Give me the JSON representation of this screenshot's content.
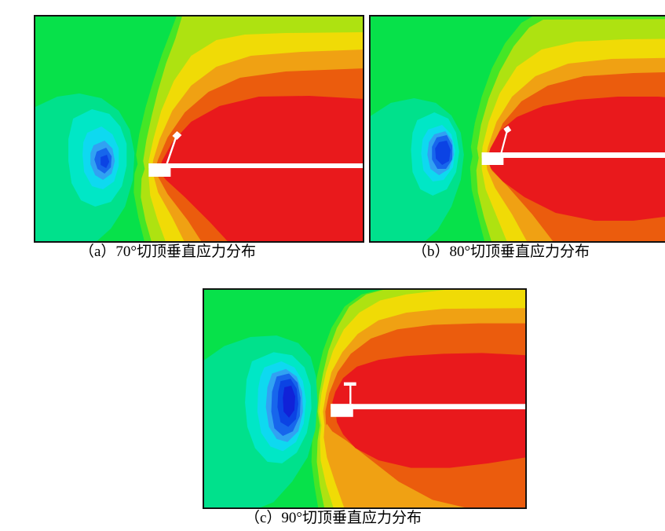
{
  "page": {
    "background": "#FFFFFF"
  },
  "figure": {
    "panels": [
      {
        "id": "a",
        "caption": "（a）70°切顶垂直应力分布",
        "roof_cut_angle": "70°"
      },
      {
        "id": "b",
        "caption": "（b）80°切顶垂直应力分布",
        "roof_cut_angle": "80°"
      },
      {
        "id": "c",
        "caption": "（c）90°切顶垂直应力分布",
        "roof_cut_angle": "90°"
      }
    ],
    "palette": {
      "background_green": "#07E14A",
      "light_green": "#45E626",
      "spring_green": "#00E18C",
      "turquoise": "#00E7C6",
      "cyan": "#0ED9F0",
      "light_blue": "#31A2F2",
      "blue": "#1766EC",
      "deep_blue": "#0B43E4",
      "navy": "#1022D8",
      "chartreuse": "#AEE211",
      "yellow": "#F0DB06",
      "orange": "#F0A113",
      "dark_orange": "#EB5C0D",
      "red": "#E9191C",
      "excavation_white": "#FFFFFF",
      "border": "#101010"
    }
  },
  "chart_data": [
    {
      "type": "heatmap",
      "subtype": "filled_contour_stress_field",
      "title": "（a）70°切顶垂直应力分布",
      "roof_cut_angle_deg": 70,
      "axes_shown": false,
      "colorbar_shown": false,
      "legend_position": "none",
      "zones": {
        "background": "green in-situ stress field",
        "low_stress_relief_zone": "small concentric blue/cyan core left of roadway (goaf side), centered mid-left",
        "high_stress_concentration_zone": "large red abutment zone right of cut, wrapping above and below the white excavation, reaching top-right and bottom-right edges",
        "white_geometry": "horizontal excavated roadway band with entry block at its left end and a thin roof-cut slit inclined 70° toward upper right"
      },
      "color_ramp_low_to_high": [
        "#0B43E4",
        "#1766EC",
        "#31A2F2",
        "#0ED9F0",
        "#00E7C6",
        "#00E18C",
        "#07E14A",
        "#AEE211",
        "#F0DB06",
        "#F0A113",
        "#EB5C0D",
        "#E9191C"
      ]
    },
    {
      "type": "heatmap",
      "subtype": "filled_contour_stress_field",
      "title": "（b）80°切顶垂直应力分布",
      "roof_cut_angle_deg": 80,
      "axes_shown": false,
      "colorbar_shown": false,
      "legend_position": "none",
      "zones": {
        "background": "green in-situ stress field",
        "low_stress_relief_zone": "compact blue core with dark-blue center left of roadway, smaller than 70° case",
        "high_stress_concentration_zone": "closed red lobe ahead of cut spanning most of right half; dark-orange band along bottom-right edge",
        "white_geometry": "horizontal excavated roadway band with entry block and near-vertical roof-cut slit inclined 80°"
      },
      "color_ramp_low_to_high": [
        "#0B43E4",
        "#1766EC",
        "#31A2F2",
        "#0ED9F0",
        "#00E7C6",
        "#00E18C",
        "#07E14A",
        "#AEE211",
        "#F0DB06",
        "#F0A113",
        "#EB5C0D",
        "#E9191C"
      ]
    },
    {
      "type": "heatmap",
      "subtype": "filled_contour_stress_field",
      "title": "（c）90°切顶垂直应力分布",
      "roof_cut_angle_deg": 90,
      "axes_shown": false,
      "colorbar_shown": false,
      "legend_position": "none",
      "zones": {
        "background": "green in-situ stress field",
        "low_stress_relief_zone": "largest blue relief zone of the three, vertically elongated with navy core, left of roadway",
        "high_stress_concentration_zone": "red lobe right of vertical cut reaching the right edge; dark-orange and orange bands toward bottom edge; yellow band touches top-right edge",
        "white_geometry": "horizontal excavated roadway band with larger entry block and vertical roof-cut slit (90°) capped by a short white tick"
      },
      "color_ramp_low_to_high": [
        "#1022D8",
        "#0B43E4",
        "#1766EC",
        "#31A2F2",
        "#0ED9F0",
        "#00E7C6",
        "#00E18C",
        "#07E14A",
        "#AEE211",
        "#F0DB06",
        "#F0A113",
        "#EB5C0D",
        "#E9191C"
      ]
    }
  ]
}
